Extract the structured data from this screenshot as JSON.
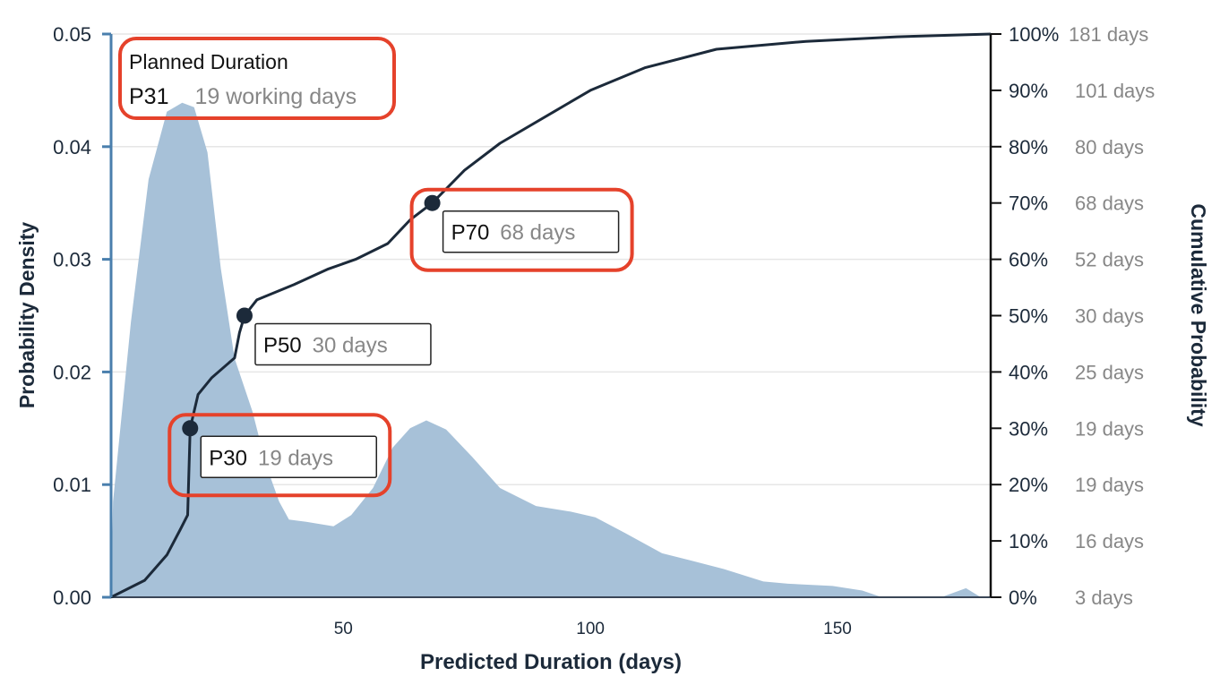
{
  "chart_data": {
    "type": "area",
    "xlabel": "Predicted Duration (days)",
    "ylabel_left": "Probability Density",
    "ylabel_right": "Cumulative Probability",
    "xlim": [
      3,
      181
    ],
    "ylim_left": [
      0,
      0.05
    ],
    "ylim_right": [
      0,
      1
    ],
    "grid": true,
    "x_ticks": [
      50,
      100,
      150
    ],
    "x_tick_labels": [
      "50",
      "100",
      "150"
    ],
    "y_left_ticks": [
      0,
      0.01,
      0.02,
      0.03,
      0.04,
      0.05
    ],
    "y_left_tick_labels": [
      "0.00",
      "0.01",
      "0.02",
      "0.03",
      "0.04",
      "0.05"
    ],
    "y_right_ticks": [
      0,
      0.1,
      0.2,
      0.3,
      0.4,
      0.5,
      0.6,
      0.7,
      0.8,
      0.9,
      1.0
    ],
    "y_right_tick_labels": [
      "0%",
      "10%",
      "20%",
      "30%",
      "40%",
      "50%",
      "60%",
      "70%",
      "80%",
      "90%",
      "100%"
    ],
    "y_right_day_labels": [
      "3 days",
      "16 days",
      "19 days",
      "19 days",
      "25 days",
      "30 days",
      "52 days",
      "68 days",
      "80 days",
      "101 days",
      "181 days"
    ],
    "series": [
      {
        "kind": "density-area",
        "color": "#a7c1d8",
        "x": [
          3,
          3.4,
          7,
          10.6,
          14.3,
          17.4,
          19.8,
          22.5,
          25.2,
          28,
          31.6,
          34.4,
          37,
          39,
          42.5,
          48,
          51.6,
          56,
          60,
          63.5,
          66.8,
          70.8,
          76,
          81.7,
          89,
          96,
          101,
          107,
          114.5,
          120,
          127,
          135,
          140,
          149,
          155,
          159,
          171,
          176,
          179
        ],
        "y": [
          0,
          0.0085,
          0.0244,
          0.0371,
          0.0431,
          0.0439,
          0.0435,
          0.0395,
          0.0292,
          0.0212,
          0.0165,
          0.0117,
          0.0085,
          0.0069,
          0.0067,
          0.0063,
          0.0073,
          0.0097,
          0.0133,
          0.015,
          0.0157,
          0.0149,
          0.0125,
          0.0097,
          0.0081,
          0.0076,
          0.0071,
          0.0057,
          0.0039,
          0.0033,
          0.0025,
          0.0014,
          0.0012,
          0.001,
          0.0006,
          0,
          0,
          0.0008,
          0
        ]
      },
      {
        "kind": "cumulative-line",
        "color": "#1c2a3a",
        "x": [
          3,
          9.8,
          14.3,
          17,
          18.5,
          19,
          20.6,
          23.4,
          28,
          29,
          30,
          32.5,
          40,
          47,
          52.5,
          59,
          63.5,
          68,
          74.5,
          81.7,
          92.6,
          100,
          111,
          125.5,
          143.6,
          162,
          181
        ],
        "y": [
          0,
          0.03,
          0.075,
          0.12,
          0.146,
          0.3,
          0.36,
          0.39,
          0.425,
          0.47,
          0.5,
          0.528,
          0.555,
          0.583,
          0.6,
          0.628,
          0.67,
          0.7,
          0.758,
          0.806,
          0.862,
          0.9,
          0.94,
          0.973,
          0.987,
          0.995,
          1.0
        ]
      }
    ],
    "markers": [
      {
        "label": "P30",
        "value": "19 days",
        "x": 19,
        "y": 0.3,
        "highlighted": true
      },
      {
        "label": "P50",
        "value": "30 days",
        "x": 30,
        "y": 0.5,
        "highlighted": false
      },
      {
        "label": "P70",
        "value": "68 days",
        "x": 68,
        "y": 0.7,
        "highlighted": true
      }
    ],
    "planned": {
      "title": "Planned Duration",
      "label": "P31",
      "value": "19 working days",
      "highlighted": true
    },
    "colors": {
      "left_axis": "#4a7fad",
      "highlight": "#e5422b",
      "label_gray": "#878787",
      "text_dark": "#1c2a3a"
    }
  }
}
